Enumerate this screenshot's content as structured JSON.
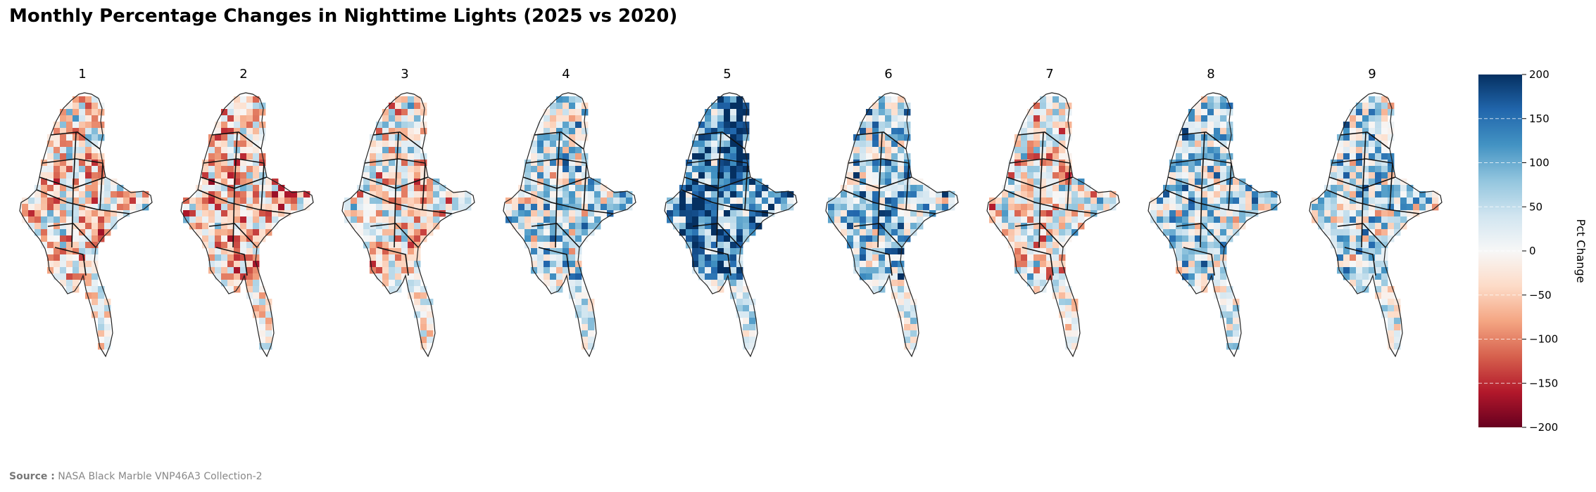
{
  "title": "Monthly Percentage Changes in Nighttime Lights (2025 vs 2020)",
  "source_label": "Source :",
  "source_text": "NASA Black Marble VNP46A3 Collection-2",
  "panels": [
    {
      "label": "1",
      "mean_pct": -25
    },
    {
      "label": "2",
      "mean_pct": -35
    },
    {
      "label": "3",
      "mean_pct": -15
    },
    {
      "label": "4",
      "mean_pct": 40
    },
    {
      "label": "5",
      "mean_pct": 120
    },
    {
      "label": "6",
      "mean_pct": 60
    },
    {
      "label": "7",
      "mean_pct": -10
    },
    {
      "label": "8",
      "mean_pct": 50
    },
    {
      "label": "9",
      "mean_pct": 40
    }
  ],
  "colorbar": {
    "label": "Pct Change",
    "min": -200,
    "max": 200,
    "ticks": [
      200,
      150,
      100,
      50,
      0,
      -50,
      -100,
      -150,
      -200
    ],
    "tick_labels": [
      "200",
      "150",
      "100",
      "50",
      "0",
      "−50",
      "−100",
      "−150",
      "−200"
    ],
    "colormap": [
      "#67001f",
      "#b2182b",
      "#d6604d",
      "#f4a582",
      "#fddbc7",
      "#f7f7f7",
      "#d1e5f0",
      "#92c5de",
      "#4393c3",
      "#2166ac",
      "#053061"
    ]
  }
}
